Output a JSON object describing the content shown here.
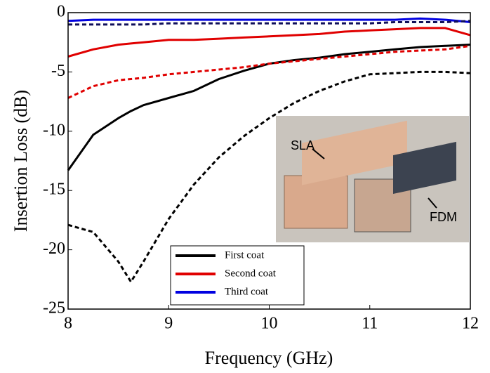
{
  "chart_data": {
    "type": "line",
    "x_label": "Frequency (GHz)",
    "y_label": "Insertion Loss (dB)",
    "xlim": [
      8,
      12
    ],
    "ylim": [
      -25,
      0
    ],
    "xticks": [
      8,
      9,
      10,
      11,
      12
    ],
    "yticks": [
      -25,
      -20,
      -15,
      -10,
      -5,
      0
    ],
    "x": [
      8,
      8.25,
      8.5,
      8.625,
      8.75,
      9,
      9.25,
      9.5,
      9.75,
      10,
      10.25,
      10.5,
      10.75,
      11,
      11.25,
      11.5,
      11.75,
      12
    ],
    "series": [
      {
        "color": "#000000",
        "dash": false,
        "values": [
          -13.3,
          -10.3,
          -8.9,
          -8.3,
          -7.8,
          -7.2,
          -6.6,
          -5.6,
          -4.9,
          -4.3,
          -4.0,
          -3.8,
          -3.5,
          -3.3,
          -3.1,
          -2.9,
          -2.8,
          -2.7
        ]
      },
      {
        "color": "#000000",
        "dash": true,
        "values": [
          -17.9,
          -18.5,
          -21.0,
          -22.7,
          -21.0,
          -17.4,
          -14.5,
          -12.2,
          -10.4,
          -8.9,
          -7.6,
          -6.6,
          -5.8,
          -5.2,
          -5.1,
          -5.0,
          -5.0,
          -5.1
        ]
      },
      {
        "color": "#e00000",
        "dash": false,
        "values": [
          -3.7,
          -3.1,
          -2.7,
          -2.6,
          -2.5,
          -2.3,
          -2.3,
          -2.2,
          -2.1,
          -2.0,
          -1.9,
          -1.8,
          -1.6,
          -1.5,
          -1.4,
          -1.3,
          -1.3,
          -1.9
        ]
      },
      {
        "color": "#e00000",
        "dash": true,
        "values": [
          -7.2,
          -6.2,
          -5.7,
          -5.6,
          -5.5,
          -5.2,
          -5.0,
          -4.8,
          -4.6,
          -4.3,
          -4.1,
          -3.9,
          -3.7,
          -3.5,
          -3.3,
          -3.2,
          -3.1,
          -2.8
        ]
      },
      {
        "color": "#0000e0",
        "dash": false,
        "values": [
          -0.7,
          -0.6,
          -0.6,
          -0.6,
          -0.6,
          -0.6,
          -0.6,
          -0.6,
          -0.6,
          -0.6,
          -0.6,
          -0.6,
          -0.6,
          -0.6,
          -0.6,
          -0.5,
          -0.6,
          -0.8
        ]
      },
      {
        "color": "#10105a",
        "dash": true,
        "values": [
          -1.0,
          -1.0,
          -1.0,
          -1.0,
          -1.0,
          -0.9,
          -0.9,
          -0.9,
          -0.9,
          -0.9,
          -0.9,
          -0.9,
          -0.9,
          -0.9,
          -0.8,
          -0.8,
          -0.8,
          -0.7
        ]
      }
    ],
    "legend": [
      {
        "name": "First coat",
        "color": "#000000"
      },
      {
        "name": "Second coat",
        "color": "#e00000"
      },
      {
        "name": "Third coat",
        "color": "#0000e0"
      }
    ],
    "annotations": [
      "SLA",
      "FDM"
    ]
  }
}
